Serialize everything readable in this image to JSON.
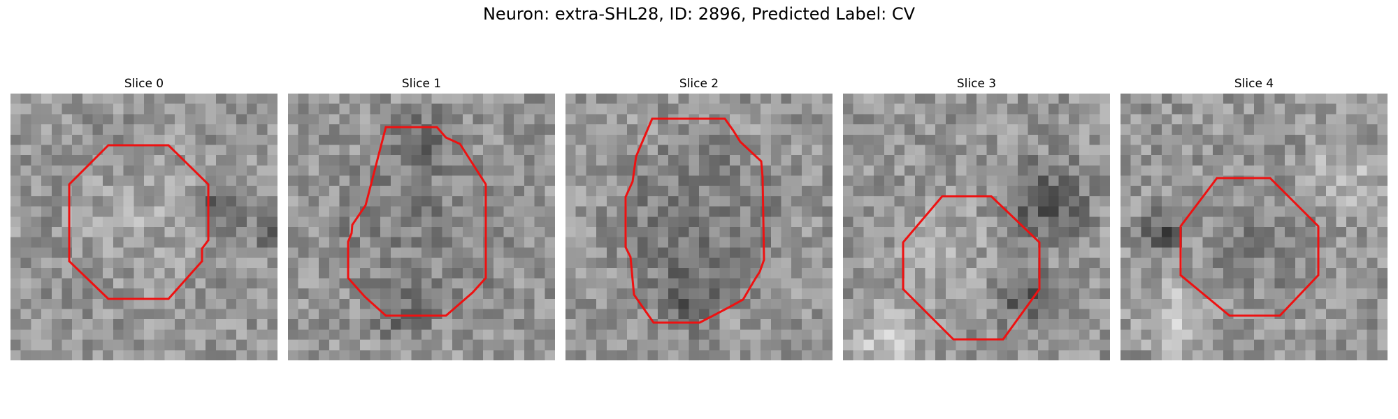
{
  "figure": {
    "title": "Neuron: extra-SHL28, ID: 2896, Predicted Label: CV"
  },
  "panels": [
    {
      "title": "Slice 0"
    },
    {
      "title": "Slice 1"
    },
    {
      "title": "Slice 2"
    },
    {
      "title": "Slice 3"
    },
    {
      "title": "Slice 4"
    }
  ],
  "colors": {
    "outline": "#ee1111",
    "colormap": "grayscale"
  }
}
